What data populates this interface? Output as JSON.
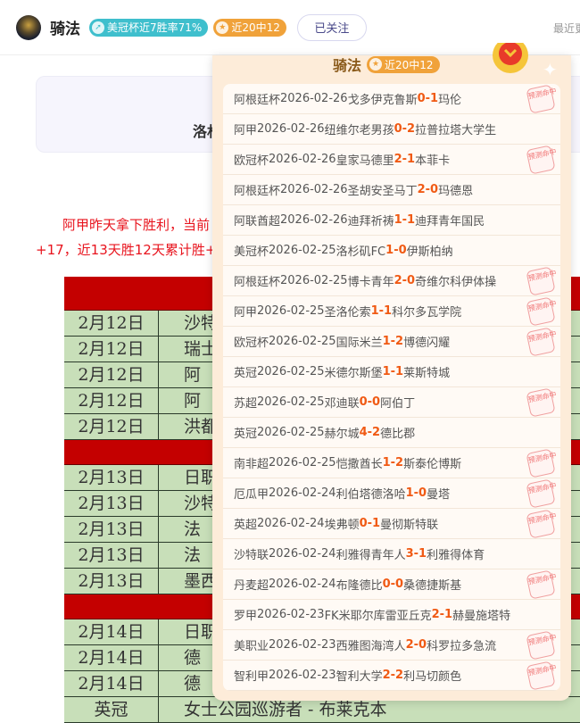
{
  "header": {
    "name": "骑法",
    "tag1": "美冠杯近7胜率71%",
    "tag1_icon": "arrow-up-icon",
    "tag2": "近20中12",
    "tag2_icon": "star-icon",
    "follow": "已关注",
    "recent": "最近更"
  },
  "colors": {
    "teal": "#3fbfcd",
    "orange": "#f0a23a",
    "score": "#f05a14",
    "red": "#e8141e",
    "table_header": "#c40000",
    "table_row": "#c8dfb9"
  },
  "article": {
    "box_text": "洛杉",
    "para_line1": "阿甲昨天拿下胜利，当前",
    "para_line2": "+17，近13天胜12天累计胜+"
  },
  "table": {
    "rows": [
      {
        "date": "2月12日",
        "team": "沙特"
      },
      {
        "date": "2月12日",
        "team": "瑞士"
      },
      {
        "date": "2月12日",
        "team": "阿"
      },
      {
        "date": "2月12日",
        "team": "阿"
      },
      {
        "date": "2月12日",
        "team": "洪都"
      },
      {
        "date": "2月13日",
        "team": "日职"
      },
      {
        "date": "2月13日",
        "team": "沙特"
      },
      {
        "date": "2月13日",
        "team": "法"
      },
      {
        "date": "2月13日",
        "team": "法"
      },
      {
        "date": "2月13日",
        "team": "墨西"
      },
      {
        "date": "2月14日",
        "team": "日职"
      },
      {
        "date": "2月14日",
        "team": "德"
      },
      {
        "date": "2月14日",
        "team": "德"
      },
      {
        "date": "英冠",
        "team": "女士公园巡游者 - 布莱克本"
      }
    ]
  },
  "popup": {
    "name": "骑法",
    "tag": "近20中12",
    "stamp_label": "预测命中",
    "matches": [
      {
        "league": "阿根廷杯",
        "date": "2026-02-26",
        "home": "戈多伊克鲁斯",
        "hs": "0",
        "as": "1",
        "away": "玛伦",
        "hit": true
      },
      {
        "league": "阿甲",
        "date": "2026-02-26",
        "home": "纽维尔老男孩",
        "hs": "0",
        "as": "2",
        "away": "拉普拉塔大学生",
        "hit": false
      },
      {
        "league": "欧冠杯",
        "date": "2026-02-26",
        "home": "皇家马德里",
        "hs": "2",
        "as": "1",
        "away": "本菲卡",
        "hit": true
      },
      {
        "league": "阿根廷杯",
        "date": "2026-02-26",
        "home": "圣胡安圣马丁",
        "hs": "2",
        "as": "0",
        "away": "玛德恩",
        "hit": false
      },
      {
        "league": "阿联酋超",
        "date": "2026-02-26",
        "home": "迪拜祈祷",
        "hs": "1",
        "as": "1",
        "away": "迪拜青年国民",
        "hit": false
      },
      {
        "league": "美冠杯",
        "date": "2026-02-25",
        "home": "洛杉矶FC",
        "hs": "1",
        "as": "0",
        "away": "伊斯柏纳",
        "hit": false
      },
      {
        "league": "阿根廷杯",
        "date": "2026-02-25",
        "home": "博卡青年",
        "hs": "2",
        "as": "0",
        "away": "奇维尔科伊体操",
        "hit": true
      },
      {
        "league": "阿甲",
        "date": "2026-02-25",
        "home": "圣洛伦索",
        "hs": "1",
        "as": "1",
        "away": "科尔多瓦学院",
        "hit": true
      },
      {
        "league": "欧冠杯",
        "date": "2026-02-25",
        "home": "国际米兰",
        "hs": "1",
        "as": "2",
        "away": "博德闪耀",
        "hit": true
      },
      {
        "league": "英冠",
        "date": "2026-02-25",
        "home": "米德尔斯堡",
        "hs": "1",
        "as": "1",
        "away": "莱斯特城",
        "hit": false
      },
      {
        "league": "苏超",
        "date": "2026-02-25",
        "home": "邓迪联",
        "hs": "0",
        "as": "0",
        "away": "阿伯丁",
        "hit": true
      },
      {
        "league": "英冠",
        "date": "2026-02-25",
        "home": "赫尔城",
        "hs": "4",
        "as": "2",
        "away": "德比郡",
        "hit": false
      },
      {
        "league": "南非超",
        "date": "2026-02-25",
        "home": "恺撒酋长",
        "hs": "1",
        "as": "2",
        "away": "斯泰伦博斯",
        "hit": true
      },
      {
        "league": "厄瓜甲",
        "date": "2026-02-24",
        "home": "利伯塔德洛哈",
        "hs": "1",
        "as": "0",
        "away": "曼塔",
        "hit": true
      },
      {
        "league": "英超",
        "date": "2026-02-24",
        "home": "埃弗顿",
        "hs": "0",
        "as": "1",
        "away": "曼彻斯特联",
        "hit": true
      },
      {
        "league": "沙特联",
        "date": "2026-02-24",
        "home": "利雅得青年人",
        "hs": "3",
        "as": "1",
        "away": "利雅得体育",
        "hit": false
      },
      {
        "league": "丹麦超",
        "date": "2026-02-24",
        "home": "布隆德比",
        "hs": "0",
        "as": "0",
        "away": "桑德捷斯基",
        "hit": true
      },
      {
        "league": "罗甲",
        "date": "2026-02-23",
        "home": "FK米耶尔库雷亚丘克",
        "hs": "2",
        "as": "1",
        "away": "赫曼施塔特",
        "hit": false
      },
      {
        "league": "美职业",
        "date": "2026-02-23",
        "home": "西雅图海湾人",
        "hs": "2",
        "as": "0",
        "away": "科罗拉多急流",
        "hit": true
      },
      {
        "league": "智利甲",
        "date": "2026-02-23",
        "home": "智利大学",
        "hs": "2",
        "as": "2",
        "away": "利马切颜色",
        "hit": true
      }
    ]
  }
}
